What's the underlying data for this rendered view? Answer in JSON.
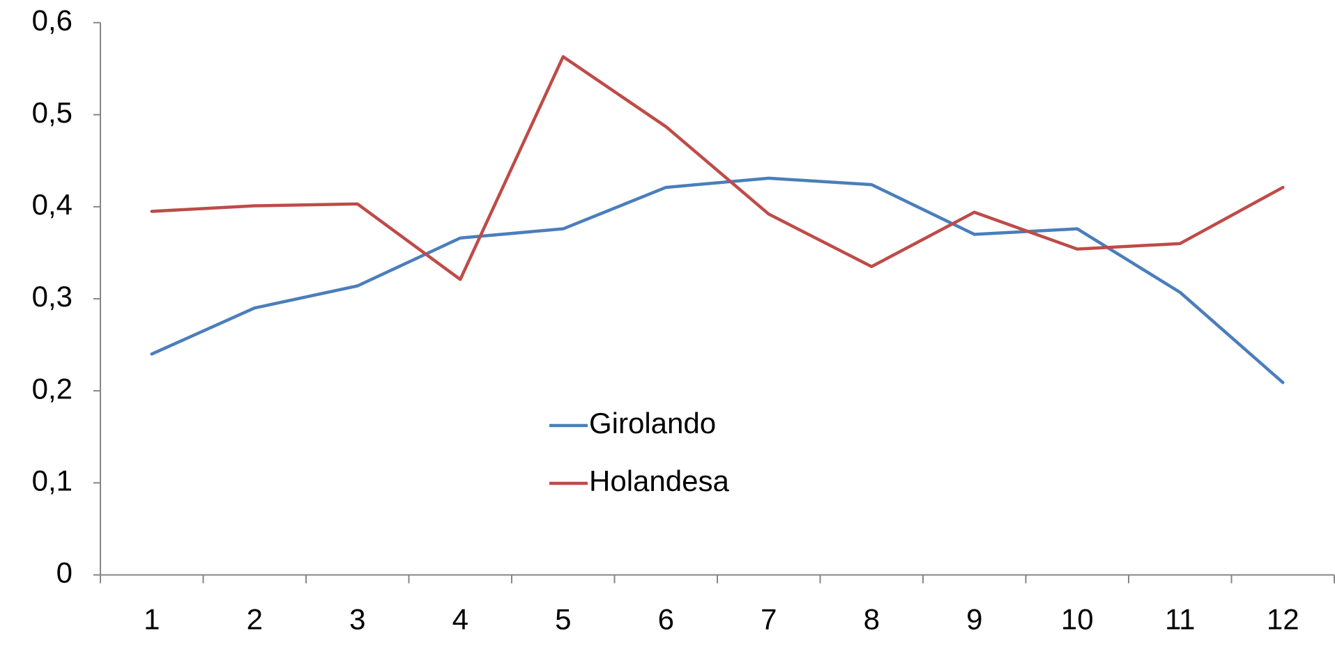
{
  "chart_data": {
    "type": "line",
    "categories": [
      1,
      2,
      3,
      4,
      5,
      6,
      7,
      8,
      9,
      10,
      11,
      12
    ],
    "series": [
      {
        "name": "Girolando",
        "color": "#4a7ebb",
        "values": [
          0.24,
          0.29,
          0.314,
          0.366,
          0.376,
          0.421,
          0.431,
          0.424,
          0.37,
          0.376,
          0.307,
          0.209
        ]
      },
      {
        "name": "Holandesa",
        "color": "#be4b48",
        "values": [
          0.395,
          0.401,
          0.403,
          0.321,
          0.563,
          0.487,
          0.392,
          0.335,
          0.394,
          0.354,
          0.36,
          0.421
        ]
      }
    ],
    "ylim": [
      0,
      0.6
    ],
    "yticks": [
      0,
      {
        "value": 0.1,
        "label": "0,1"
      },
      {
        "value": 0.2,
        "label": "0,2"
      },
      {
        "value": 0.3,
        "label": "0,3"
      },
      {
        "value": 0.4,
        "label": "0,4"
      },
      {
        "value": 0.5,
        "label": "0,5"
      },
      {
        "value": 0.6,
        "label": "0,6"
      }
    ],
    "grid": false,
    "legend": "center"
  }
}
